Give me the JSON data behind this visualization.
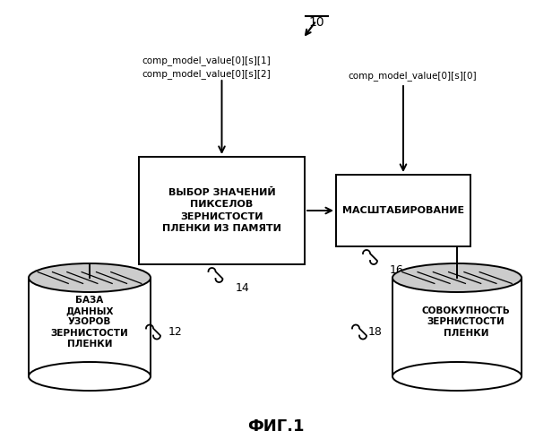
{
  "title_label": "10",
  "fig_label": "ФИГ.1",
  "box1_text": "ВЫБОР ЗНАЧЕНИЙ\nПИКСЕЛОВ\nЗЕРНИСТОСТИ\nПЛЕНКИ ИЗ ПАМЯТИ",
  "box2_text": "МАСШТАБИРОВАНИЕ",
  "box1_label": "14",
  "box2_label": "16",
  "cyl1_text": "БАЗА\nДАННЫХ\nУЗОРОВ\nЗЕРНИСТОСТИ\nПЛЕНКИ",
  "cyl1_label": "12",
  "cyl2_text": "СОВОКУПНОСТЬ\nЗЕРНИСТОСТИ\nПЛЕНКИ",
  "cyl2_label": "18",
  "input1_text": "comp_model_value[0][s][1]\ncomp_model_value[0][s][2]",
  "input2_text": "comp_model_value[0][s][0]",
  "bg_color": "#ffffff",
  "line_color": "#000000",
  "text_color": "#000000"
}
